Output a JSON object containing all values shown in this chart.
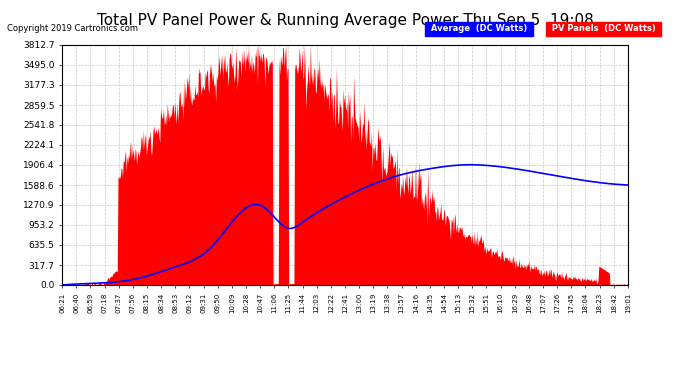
{
  "title": "Total PV Panel Power & Running Average Power Thu Sep 5  19:08",
  "copyright": "Copyright 2019 Cartronics.com",
  "legend_avg": "Average  (DC Watts)",
  "legend_pv": "PV Panels  (DC Watts)",
  "yticks": [
    0.0,
    317.7,
    635.5,
    953.2,
    1270.9,
    1588.6,
    1906.4,
    2224.1,
    2541.8,
    2859.5,
    3177.3,
    3495.0,
    3812.7
  ],
  "ymax": 3812.7,
  "bg_color": "#ffffff",
  "plot_bg_color": "#ffffff",
  "grid_color": "#bbbbbb",
  "fill_color": "#ff0000",
  "avg_line_color": "#0000ff",
  "title_fontsize": 11,
  "xtick_labels": [
    "06:21",
    "06:40",
    "06:59",
    "07:18",
    "07:37",
    "07:56",
    "08:15",
    "08:34",
    "08:53",
    "09:12",
    "09:31",
    "09:50",
    "10:09",
    "10:28",
    "10:47",
    "11:06",
    "11:25",
    "11:44",
    "12:03",
    "12:22",
    "12:41",
    "13:00",
    "13:19",
    "13:38",
    "13:57",
    "14:16",
    "14:35",
    "14:54",
    "15:13",
    "15:32",
    "15:51",
    "16:10",
    "16:29",
    "16:48",
    "17:07",
    "17:26",
    "17:45",
    "18:04",
    "18:23",
    "18:42",
    "19:01"
  ]
}
